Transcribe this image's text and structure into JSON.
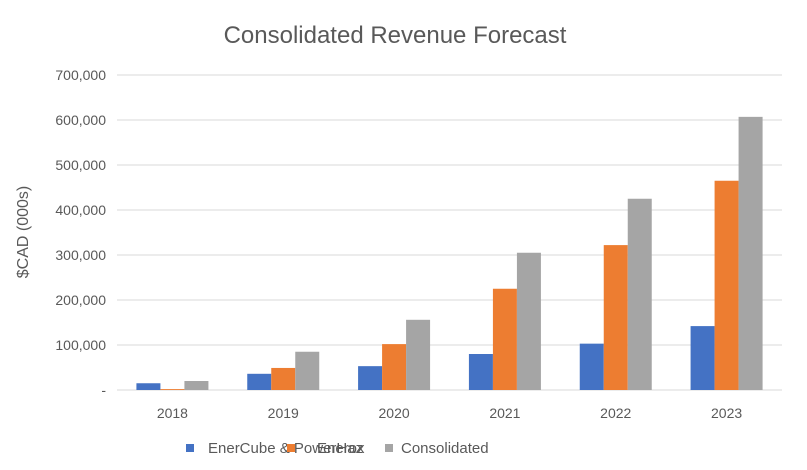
{
  "chart_data": {
    "type": "bar",
    "title": "Consolidated Revenue Forecast",
    "xlabel": "",
    "ylabel": "$CAD (000s)",
    "ylim": [
      0,
      700000
    ],
    "yticks": [
      0,
      100000,
      200000,
      300000,
      400000,
      500000,
      600000,
      700000
    ],
    "ytick_labels": [
      "-",
      "100,000",
      "200,000",
      "300,000",
      "400,000",
      "500,000",
      "600,000",
      "700,000"
    ],
    "grid": true,
    "legend_position": "bottom",
    "categories": [
      "2018",
      "2019",
      "2020",
      "2021",
      "2022",
      "2023"
    ],
    "series": [
      {
        "name": "EnerCube & PowerHaz",
        "color": "#4472c4",
        "values": [
          15000,
          36000,
          53000,
          80000,
          103000,
          142000
        ]
      },
      {
        "name": "Enerox",
        "color": "#ed7d31",
        "values": [
          2000,
          49000,
          102000,
          225000,
          322000,
          465000
        ]
      },
      {
        "name": "Consolidated",
        "color": "#a5a5a5",
        "values": [
          20000,
          85000,
          156000,
          305000,
          425000,
          607000
        ]
      }
    ]
  }
}
